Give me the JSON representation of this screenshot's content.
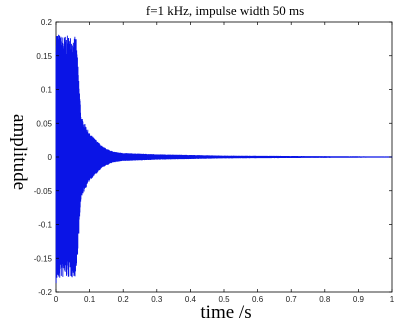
{
  "chart_data": {
    "type": "line",
    "title": "f=1 kHz, impulse width 50 ms",
    "xlabel": "time /s",
    "ylabel": "amplitude",
    "xlim": [
      0,
      1
    ],
    "ylim": [
      -0.2,
      0.2
    ],
    "xticks": [
      "0",
      "0.1",
      "0.2",
      "0.3",
      "0.4",
      "0.5",
      "0.6",
      "0.7",
      "0.8",
      "0.9",
      "1"
    ],
    "yticks": [
      "0.2",
      "0.15",
      "0.1",
      "0.05",
      "0",
      "-0.05",
      "-0.1",
      "-0.15",
      "-0.2"
    ],
    "grid": false,
    "series_color": "#0a14e6",
    "envelope": {
      "t": [
        0,
        0.005,
        0.015,
        0.04,
        0.06,
        0.075,
        0.085,
        0.1,
        0.12,
        0.14,
        0.17,
        0.2,
        0.3,
        0.5,
        0.8,
        1.0
      ],
      "amp": [
        0.19,
        0.185,
        0.18,
        0.18,
        0.178,
        0.06,
        0.05,
        0.035,
        0.025,
        0.015,
        0.008,
        0.006,
        0.004,
        0.002,
        0.0012,
        0.0008
      ]
    }
  }
}
